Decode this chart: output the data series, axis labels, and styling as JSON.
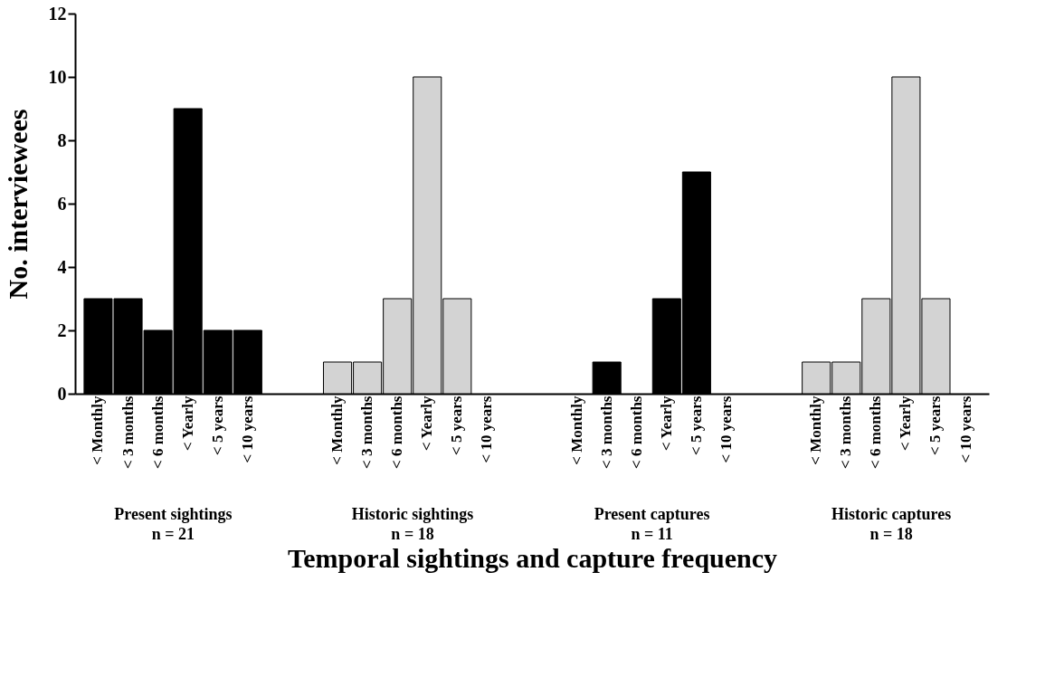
{
  "chart_data": {
    "type": "bar",
    "categories": [
      "< Monthly",
      "< 3 months",
      "< 6 months",
      "< Yearly",
      "< 5 years",
      "< 10 years",
      "< Monthly",
      "< 3 months",
      "< 6 months",
      "< Yearly",
      "< 5 years",
      "< 10 years",
      "< Monthly",
      "< 3 months",
      "< 6 months",
      "< Yearly",
      "< 5 years",
      "< 10 years",
      "< Monthly",
      "< 3 months",
      "< 6 months",
      "< Yearly",
      "< 5 years",
      "< 10 years"
    ],
    "values": [
      3,
      3,
      2,
      9,
      2,
      2,
      1,
      1,
      3,
      10,
      3,
      0,
      0,
      1,
      0,
      3,
      7,
      0,
      1,
      1,
      3,
      10,
      3,
      0
    ],
    "colors": [
      "#000000",
      "#000000",
      "#000000",
      "#000000",
      "#000000",
      "#000000",
      "#d3d3d3",
      "#d3d3d3",
      "#d3d3d3",
      "#d3d3d3",
      "#d3d3d3",
      "#d3d3d3",
      "#000000",
      "#000000",
      "#000000",
      "#000000",
      "#000000",
      "#000000",
      "#d3d3d3",
      "#d3d3d3",
      "#d3d3d3",
      "#d3d3d3",
      "#d3d3d3",
      "#d3d3d3"
    ],
    "xlabel": "Temporal sightings and capture frequency",
    "ylabel": "No. interviewees",
    "ylim": [
      0,
      12
    ],
    "yticks": [
      0,
      2,
      4,
      6,
      8,
      10,
      12
    ],
    "grid": false,
    "annotations": [
      "Present sightings\nn = 21",
      "Historic sightings\nn = 18",
      "Present captures\nn = 11",
      "Historic captures\nn = 18"
    ]
  }
}
